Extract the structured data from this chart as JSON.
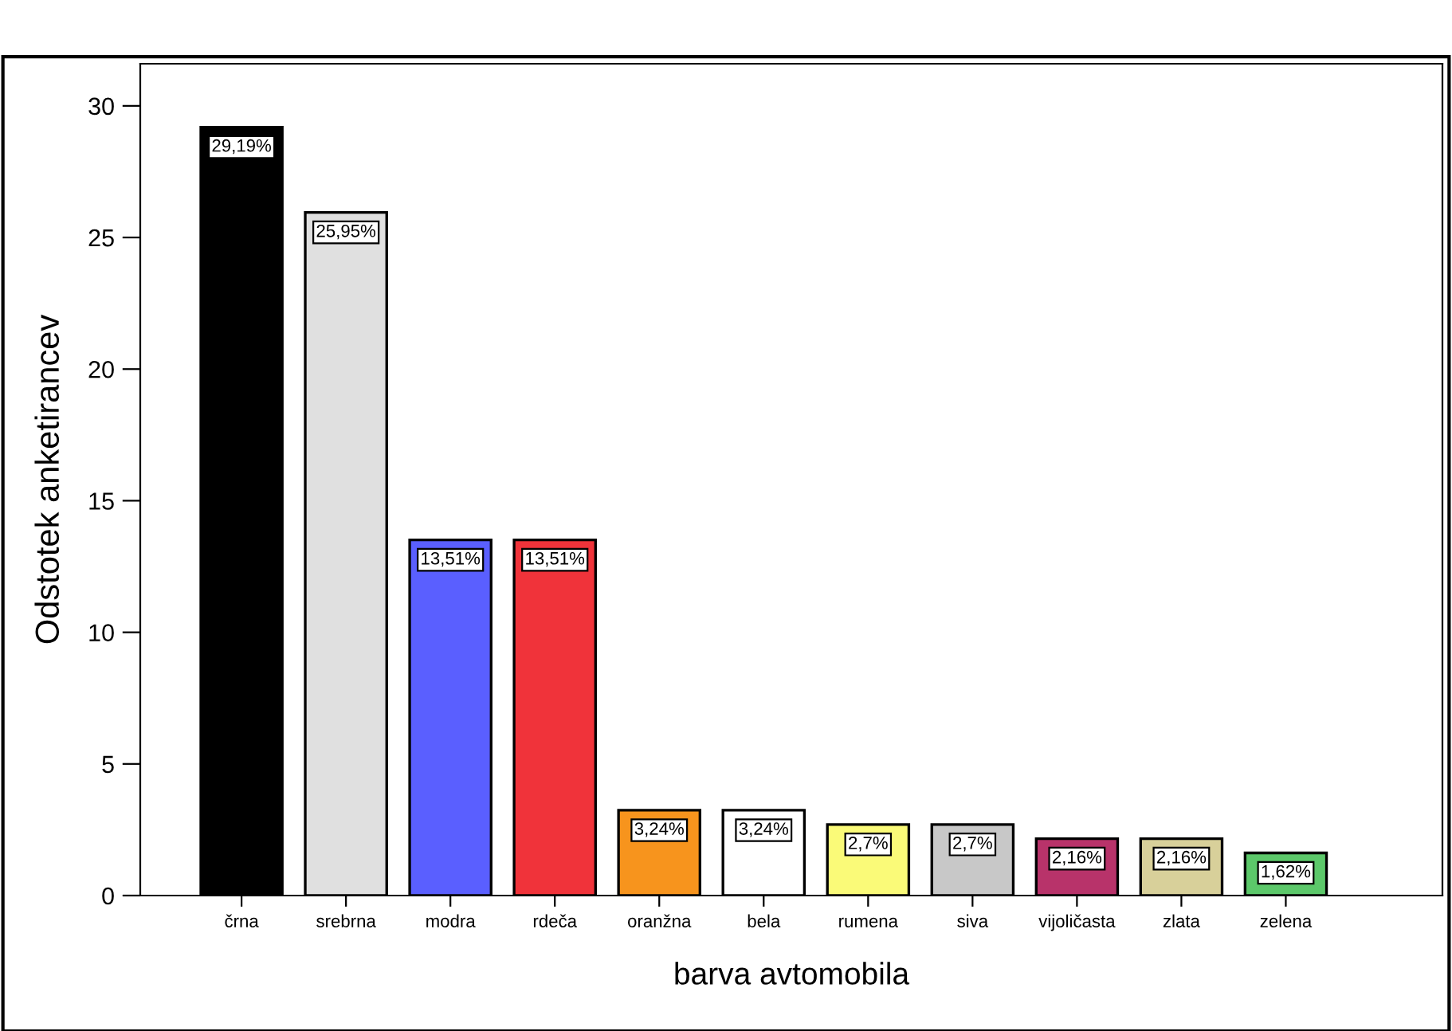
{
  "chart_data": {
    "type": "bar",
    "xlabel": "barva avtomobila",
    "ylabel": "Odstotek anketirancev",
    "categories": [
      "črna",
      "srebrna",
      "modra",
      "rdeča",
      "oranžna",
      "bela",
      "rumena",
      "siva",
      "vijoličasta",
      "zlata",
      "zelena"
    ],
    "values": [
      29.19,
      25.95,
      13.51,
      13.51,
      3.24,
      3.24,
      2.7,
      2.7,
      2.16,
      2.16,
      1.62
    ],
    "value_labels": [
      "29,19%",
      "25,95%",
      "13,51%",
      "13,51%",
      "3,24%",
      "3,24%",
      "2,7%",
      "2,7%",
      "2,16%",
      "2,16%",
      "1,62%"
    ],
    "colors": [
      "#000000",
      "#e0e0e0",
      "#5a5fff",
      "#f0333a",
      "#f7941d",
      "#ffffff",
      "#fafa78",
      "#c8c8c8",
      "#b8336a",
      "#d8d09a",
      "#5cc86a"
    ],
    "ylim": [
      0,
      31.6
    ],
    "yticks": [
      0,
      5,
      10,
      15,
      20,
      25,
      30
    ],
    "grid": false,
    "legend": false
  }
}
